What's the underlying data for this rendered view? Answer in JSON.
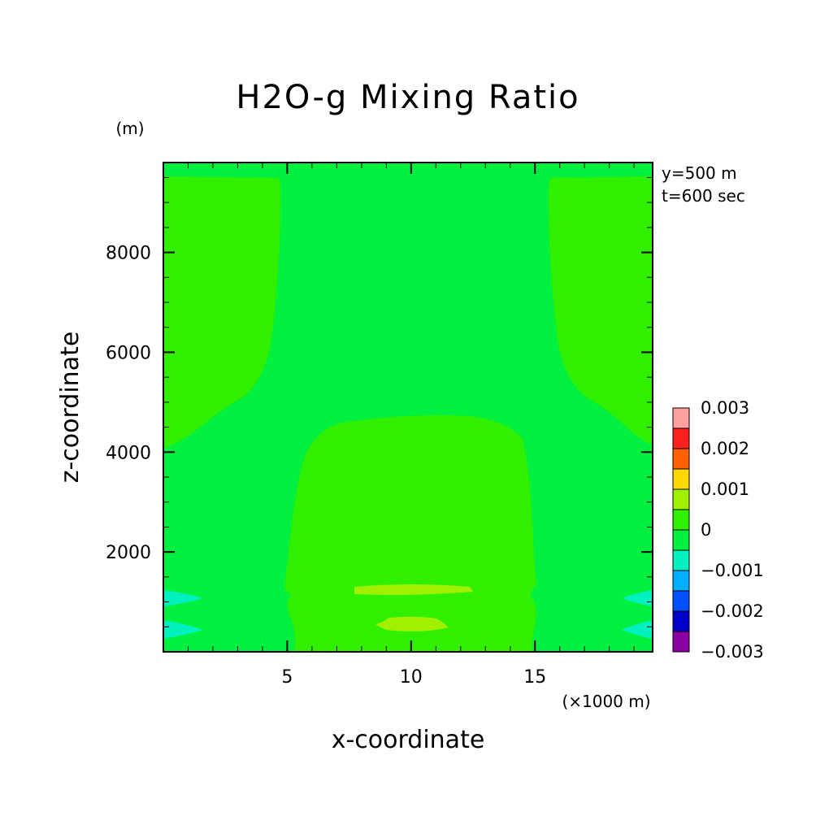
{
  "chart_data": {
    "type": "heatmap",
    "title": "H2O-g Mixing Ratio",
    "xlabel": "x-coordinate",
    "ylabel": "z-coordinate",
    "x_unit": "(×1000 m)",
    "y_unit": "(m)",
    "xlim": [
      0,
      19.75
    ],
    "ylim": [
      0,
      9800
    ],
    "x_ticks": [
      {
        "value": 5,
        "label": "5"
      },
      {
        "value": 10,
        "label": "10"
      },
      {
        "value": 15,
        "label": "15"
      }
    ],
    "y_ticks": [
      {
        "value": 2000,
        "label": "2000"
      },
      {
        "value": 4000,
        "label": "4000"
      },
      {
        "value": 6000,
        "label": "6000"
      },
      {
        "value": 8000,
        "label": "8000"
      }
    ],
    "annotations": [
      "y=500 m",
      "t=600 sec"
    ],
    "colorbar": {
      "labels": [
        "0.003",
        "0.002",
        "0.001",
        "0",
        "−0.001",
        "−0.002",
        "−0.003"
      ],
      "colors": [
        "#8a00a0",
        "#0000c8",
        "#0050ff",
        "#00b0ff",
        "#00f0c0",
        "#00f040",
        "#30f000",
        "#a0f000",
        "#ffd800",
        "#ff6000",
        "#ff2020",
        "#ffa0a0"
      ]
    },
    "background_level_color": "#00f040",
    "regions": [
      {
        "name": "upper-left-positive",
        "color": "#30f000",
        "level": "0 to 0.0005"
      },
      {
        "name": "upper-right-positive",
        "color": "#30f000",
        "level": "0 to 0.0005"
      },
      {
        "name": "central-lower-positive",
        "color": "#30f000",
        "level": "0 to 0.0005"
      },
      {
        "name": "central-band-1300m",
        "color": "#a0f000",
        "level": "0.0005 to 0.001"
      },
      {
        "name": "central-band-500m",
        "color": "#a0f000",
        "level": "0.0005 to 0.001"
      },
      {
        "name": "left-negative-1100m",
        "color": "#00f0c0",
        "level": "−0.0005 to −0.001"
      },
      {
        "name": "left-negative-450m",
        "color": "#00f0c0",
        "level": "−0.0005 to −0.001"
      },
      {
        "name": "right-negative-1100m",
        "color": "#00f0c0",
        "level": "−0.0005 to −0.001"
      },
      {
        "name": "right-negative-450m",
        "color": "#00f0c0",
        "level": "−0.0005 to −0.001"
      }
    ]
  }
}
